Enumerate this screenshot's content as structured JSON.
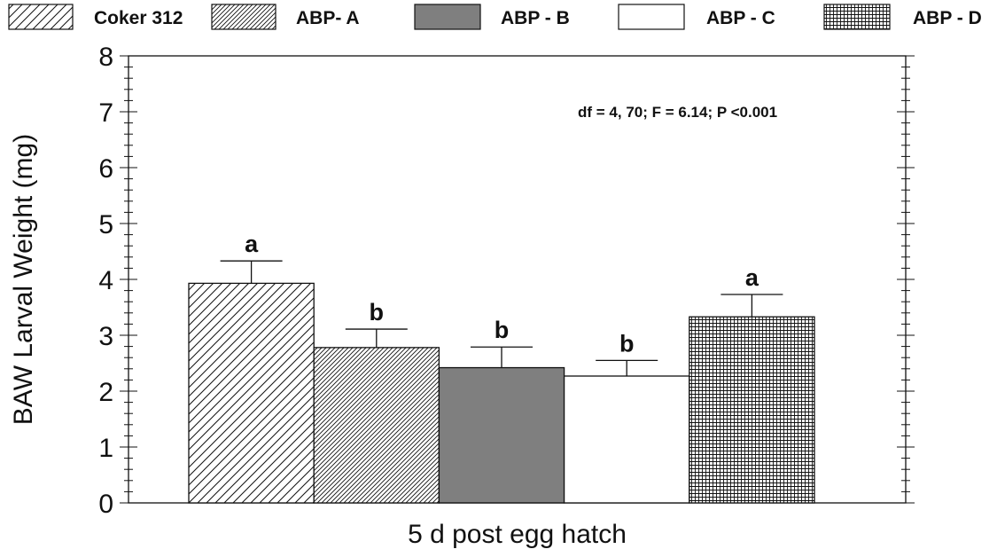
{
  "chart_data": {
    "type": "bar",
    "xlabel": "5 d post egg hatch",
    "ylabel": "BAW Larval Weight (mg)",
    "ylim": [
      0,
      8
    ],
    "y_ticks": [
      "0",
      "1",
      "2",
      "3",
      "4",
      "5",
      "6",
      "7",
      "8"
    ],
    "grid": false,
    "legend_position": "top",
    "annotation": "df = 4, 70; F = 6.14;  P <0.001",
    "series": [
      {
        "name": "Coker 312",
        "value": 3.93,
        "error": 0.4,
        "label": "a",
        "pattern": "diag-wide"
      },
      {
        "name": "ABP- A",
        "value": 2.78,
        "error": 0.33,
        "label": "b",
        "pattern": "diag-dense"
      },
      {
        "name": "ABP - B",
        "value": 2.42,
        "error": 0.37,
        "label": "b",
        "pattern": "solid-gray"
      },
      {
        "name": "ABP - C",
        "value": 2.27,
        "error": 0.28,
        "label": "b",
        "pattern": "white"
      },
      {
        "name": "ABP - D",
        "value": 3.33,
        "error": 0.4,
        "label": "a",
        "pattern": "grid"
      }
    ],
    "colors": {
      "solid_fill": "#7f7f7f",
      "line": "#111111"
    }
  }
}
